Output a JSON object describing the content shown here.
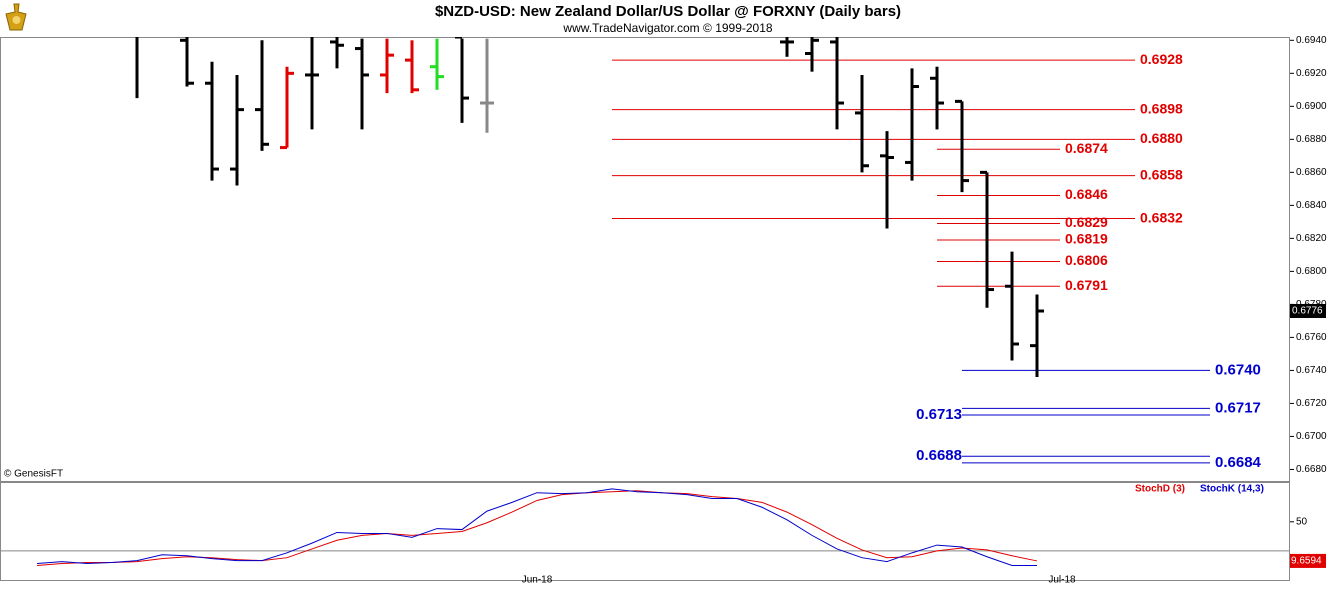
{
  "chart_data": [
    {
      "type": "ohlc",
      "title": "$NZD-USD:  New Zealand Dollar/US Dollar @ FORXNY  (Daily bars)",
      "subtitle": "www.TradeNavigator.com © 1999-2018",
      "source": "© GenesisFT",
      "open": [
        null,
        null,
        null,
        null,
        0.6945,
        null,
        0.694,
        0.6914,
        0.6862,
        0.6898,
        0.6875,
        0.6919,
        0.6939,
        0.6935,
        0.6919,
        0.6928,
        0.6924,
        0.6942,
        0.6902,
        null,
        null,
        null,
        null,
        null,
        null,
        null,
        null,
        null,
        null,
        null,
        0.6939,
        0.6932,
        0.6939,
        0.6896,
        0.687,
        0.6866,
        0.6917,
        0.6903,
        0.686,
        0.6791,
        0.6755
      ],
      "high": [
        null,
        null,
        null,
        null,
        0.6946,
        null,
        0.6945,
        0.6927,
        0.6919,
        0.694,
        0.6924,
        0.6942,
        0.6942,
        0.6941,
        0.6941,
        0.694,
        0.6941,
        0.6941,
        0.6941,
        null,
        null,
        null,
        null,
        null,
        null,
        null,
        null,
        null,
        null,
        null,
        0.6942,
        0.6942,
        0.6942,
        0.6919,
        0.6885,
        0.6923,
        0.6924,
        0.6903,
        0.686,
        0.6812,
        0.6786
      ],
      "low": [
        null,
        null,
        null,
        null,
        0.6905,
        null,
        0.6912,
        0.6855,
        0.6852,
        0.6873,
        0.6875,
        0.6886,
        0.6923,
        0.6886,
        0.6908,
        0.6908,
        0.691,
        0.689,
        0.6884,
        null,
        null,
        null,
        null,
        null,
        null,
        null,
        null,
        null,
        null,
        null,
        0.693,
        0.6921,
        0.6886,
        0.686,
        0.6826,
        0.6855,
        0.6886,
        0.6848,
        0.6778,
        0.6746,
        0.6736
      ],
      "close": [
        null,
        null,
        null,
        null,
        0.6943,
        null,
        0.6914,
        0.6862,
        0.6898,
        0.6877,
        0.692,
        0.6919,
        0.6937,
        0.6919,
        0.6931,
        0.691,
        0.6918,
        0.6905,
        0.6902,
        null,
        null,
        null,
        null,
        null,
        null,
        null,
        null,
        null,
        null,
        null,
        0.6939,
        0.694,
        0.6902,
        0.6864,
        0.6869,
        0.6912,
        0.6902,
        0.6855,
        0.6789,
        0.6756,
        0.6776
      ],
      "colors": [
        null,
        null,
        null,
        null,
        "#000000",
        null,
        "#000000",
        "#000000",
        "#000000",
        "#000000",
        "#e00000",
        "#000000",
        "#000000",
        "#000000",
        "#e00000",
        "#e00000",
        "#22dd22",
        "#000000",
        "#888888",
        null,
        null,
        null,
        null,
        null,
        null,
        null,
        null,
        null,
        null,
        null,
        "#000000",
        "#000000",
        "#000000",
        "#000000",
        "#000000",
        "#000000",
        "#000000",
        "#000000",
        "#000000",
        "#000000",
        "#000000"
      ],
      "levels": [
        {
          "value": 0.6928,
          "label": "0.6928",
          "color": "#e00000"
        },
        {
          "value": 0.6898,
          "label": "0.6898",
          "color": "#e00000"
        },
        {
          "value": 0.688,
          "label": "0.6880",
          "color": "#e00000"
        },
        {
          "value": 0.6874,
          "label": "0.6874",
          "color": "#e00000"
        },
        {
          "value": 0.6858,
          "label": "0.6858",
          "color": "#e00000"
        },
        {
          "value": 0.6846,
          "label": "0.6846",
          "color": "#e00000"
        },
        {
          "value": 0.6832,
          "label": "0.6832",
          "color": "#e00000"
        },
        {
          "value": 0.6829,
          "label": "0.6829",
          "color": "#e00000"
        },
        {
          "value": 0.6819,
          "label": "0.6819",
          "color": "#e00000"
        },
        {
          "value": 0.6806,
          "label": "0.6806",
          "color": "#e00000"
        },
        {
          "value": 0.6791,
          "label": "0.6791",
          "color": "#e00000"
        },
        {
          "value": 0.674,
          "label": "0.6740",
          "color": "#0000cc"
        },
        {
          "value": 0.6717,
          "label": "0.6717",
          "color": "#0000cc"
        },
        {
          "value": 0.6713,
          "label": "0.6713",
          "color": "#0000cc"
        },
        {
          "value": 0.6688,
          "label": "0.6688",
          "color": "#0000cc"
        },
        {
          "value": 0.6684,
          "label": "0.6684",
          "color": "#0000cc"
        }
      ],
      "ylim": [
        0.6673,
        0.6942
      ],
      "yticks": [
        {
          "value": 0.668,
          "label": "0.6680"
        },
        {
          "value": 0.67,
          "label": "0.6700"
        },
        {
          "value": 0.672,
          "label": "0.6720"
        },
        {
          "value": 0.674,
          "label": "0.6740"
        },
        {
          "value": 0.676,
          "label": "0.6760"
        },
        {
          "value": 0.678,
          "label": "0.6780"
        },
        {
          "value": 0.68,
          "label": "0.6800"
        },
        {
          "value": 0.682,
          "label": "0.6820"
        },
        {
          "value": 0.684,
          "label": "0.6840"
        },
        {
          "value": 0.686,
          "label": "0.6860"
        },
        {
          "value": 0.688,
          "label": "0.6880"
        },
        {
          "value": 0.69,
          "label": "0.6900"
        },
        {
          "value": 0.692,
          "label": "0.6920"
        },
        {
          "value": 0.694,
          "label": "0.6940"
        }
      ]
    },
    {
      "type": "line",
      "categories": [
        null,
        null,
        null,
        null,
        null,
        null,
        null,
        null,
        null,
        null,
        null,
        null,
        null,
        null,
        null,
        null,
        null,
        null,
        null,
        null,
        "Jun-18",
        null,
        null,
        null,
        null,
        null,
        null,
        null,
        null,
        null,
        null,
        null,
        null,
        null,
        null,
        null,
        null,
        null,
        null,
        null,
        null,
        "Jul-18"
      ],
      "series": [
        {
          "name": "StochD (3)",
          "color": "#e00000",
          "values": [
            5,
            7,
            8,
            8,
            9,
            12,
            14,
            13,
            11,
            10,
            13,
            22,
            31,
            36,
            38,
            36,
            38,
            40,
            49,
            60,
            72,
            78,
            80,
            81,
            82,
            80,
            79,
            76,
            74,
            70,
            60,
            47,
            33,
            21,
            13,
            14,
            20,
            23,
            21,
            15,
            9.6594,
            null
          ]
        },
        {
          "name": "StochK (14,3)",
          "color": "#0000cc",
          "values": [
            7,
            9,
            7,
            8,
            10,
            16,
            15,
            12,
            10,
            10,
            18,
            28,
            39,
            38,
            38,
            34,
            43,
            42,
            61,
            70,
            80,
            79,
            80,
            84,
            81,
            80,
            78,
            74,
            74,
            65,
            52,
            36,
            22,
            13,
            9,
            18,
            26,
            24,
            14,
            5,
            5,
            null
          ]
        }
      ],
      "levels": [
        20
      ],
      "ylim": [
        -10,
        90
      ],
      "yticks": [
        50
      ]
    }
  ]
}
